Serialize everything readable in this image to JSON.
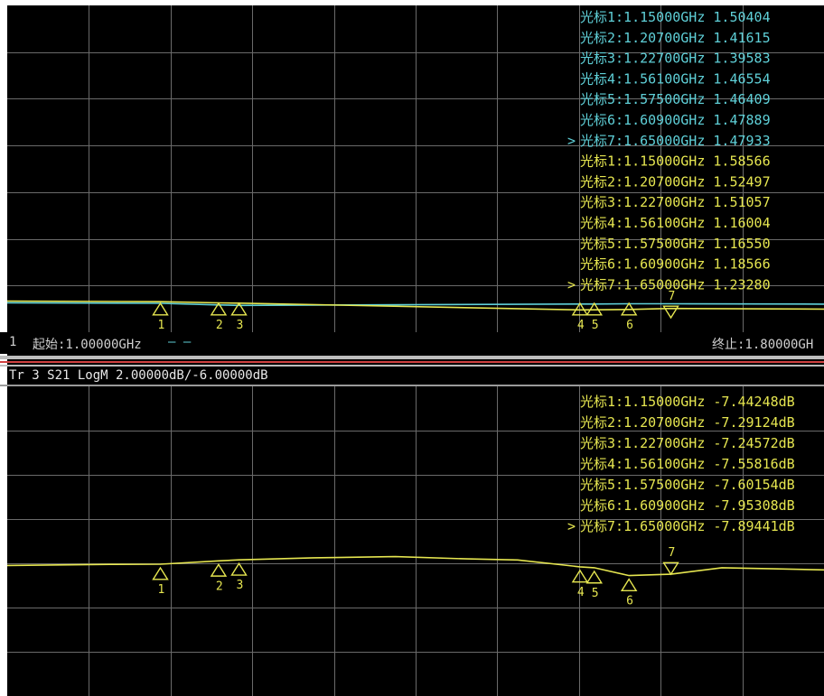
{
  "chart_data": [
    {
      "type": "line",
      "x_range_ghz": [
        1.0,
        1.8
      ],
      "start_label": "起始:1.00000GHz",
      "stop_label": "终止:1.80000GH",
      "channel_label": "1",
      "start_marker_glyph": "— —",
      "grid": true,
      "series": [
        {
          "color": "#5fd0d8",
          "x": [
            1.0,
            1.15,
            1.207,
            1.227,
            1.561,
            1.575,
            1.609,
            1.65,
            1.8
          ],
          "values": [
            1.53,
            1.50404,
            1.41615,
            1.39583,
            1.46554,
            1.46409,
            1.47889,
            1.47933,
            1.46
          ]
        },
        {
          "color": "#e6e650",
          "x": [
            1.0,
            1.15,
            1.207,
            1.227,
            1.561,
            1.575,
            1.609,
            1.65,
            1.8
          ],
          "values": [
            1.62,
            1.58566,
            1.52497,
            1.51057,
            1.16004,
            1.1655,
            1.18566,
            1.2328,
            1.2
          ]
        }
      ],
      "markers": [
        {
          "label": "光标1:1.15000GHz 1.50404",
          "color": "#5fd0d8",
          "active": false
        },
        {
          "label": "光标2:1.20700GHz 1.41615",
          "color": "#5fd0d8",
          "active": false
        },
        {
          "label": "光标3:1.22700GHz 1.39583",
          "color": "#5fd0d8",
          "active": false
        },
        {
          "label": "光标4:1.56100GHz 1.46554",
          "color": "#5fd0d8",
          "active": false
        },
        {
          "label": "光标5:1.57500GHz 1.46409",
          "color": "#5fd0d8",
          "active": false
        },
        {
          "label": "光标6:1.60900GHz 1.47889",
          "color": "#5fd0d8",
          "active": false
        },
        {
          "label": "光标7:1.65000GHz 1.47933",
          "color": "#5fd0d8",
          "active": true
        },
        {
          "label": "光标1:1.15000GHz 1.58566",
          "color": "#e6e650",
          "active": false
        },
        {
          "label": "光标2:1.20700GHz 1.52497",
          "color": "#e6e650",
          "active": false
        },
        {
          "label": "光标3:1.22700GHz 1.51057",
          "color": "#e6e650",
          "active": false
        },
        {
          "label": "光标4:1.56100GHz 1.16004",
          "color": "#e6e650",
          "active": false
        },
        {
          "label": "光标5:1.57500GHz 1.16550",
          "color": "#e6e650",
          "active": false
        },
        {
          "label": "光标6:1.60900GHz 1.18566",
          "color": "#e6e650",
          "active": false
        },
        {
          "label": "光标7:1.65000GHz 1.23280",
          "color": "#e6e650",
          "active": true
        }
      ],
      "marker_x_ghz": [
        1.15,
        1.207,
        1.227,
        1.561,
        1.575,
        1.609,
        1.65
      ],
      "marker_numbers": [
        "1",
        "2",
        "3",
        "4",
        "5",
        "6",
        "7"
      ],
      "active_arrow": ">"
    },
    {
      "type": "line",
      "title": "Tr 3  S21 LogM 2.00000dB/-6.00000dB",
      "x_range_ghz": [
        1.0,
        1.8
      ],
      "scale_db_per_div": 2.0,
      "reference_db": -6.0,
      "grid": true,
      "series": [
        {
          "color": "#e6e650",
          "x": [
            1.0,
            1.1,
            1.15,
            1.207,
            1.227,
            1.3,
            1.38,
            1.45,
            1.5,
            1.561,
            1.575,
            1.609,
            1.65,
            1.7,
            1.75,
            1.8
          ],
          "values": [
            -7.5,
            -7.45,
            -7.44248,
            -7.29124,
            -7.24572,
            -7.15,
            -7.1,
            -7.2,
            -7.25,
            -7.55816,
            -7.60154,
            -7.95308,
            -7.89441,
            -7.6,
            -7.65,
            -7.7
          ]
        }
      ],
      "markers": [
        {
          "label": "光标1:1.15000GHz -7.44248dB",
          "color": "#e6e650",
          "active": false
        },
        {
          "label": "光标2:1.20700GHz -7.29124dB",
          "color": "#e6e650",
          "active": false
        },
        {
          "label": "光标3:1.22700GHz -7.24572dB",
          "color": "#e6e650",
          "active": false
        },
        {
          "label": "光标4:1.56100GHz -7.55816dB",
          "color": "#e6e650",
          "active": false
        },
        {
          "label": "光标5:1.57500GHz -7.60154dB",
          "color": "#e6e650",
          "active": false
        },
        {
          "label": "光标6:1.60900GHz -7.95308dB",
          "color": "#e6e650",
          "active": false
        },
        {
          "label": "光标7:1.65000GHz -7.89441dB",
          "color": "#e6e650",
          "active": true
        }
      ],
      "marker_x_ghz": [
        1.15,
        1.207,
        1.227,
        1.561,
        1.575,
        1.609,
        1.65
      ],
      "marker_numbers": [
        "1",
        "2",
        "3",
        "4",
        "5",
        "6",
        "7"
      ],
      "active_arrow": ">"
    }
  ],
  "colors": {
    "grid": "#6a6a6a",
    "cyan": "#5fd0d8",
    "yellow": "#e6e650",
    "separator_red": "#d04040",
    "separator_gray": "#bdbdbd"
  }
}
